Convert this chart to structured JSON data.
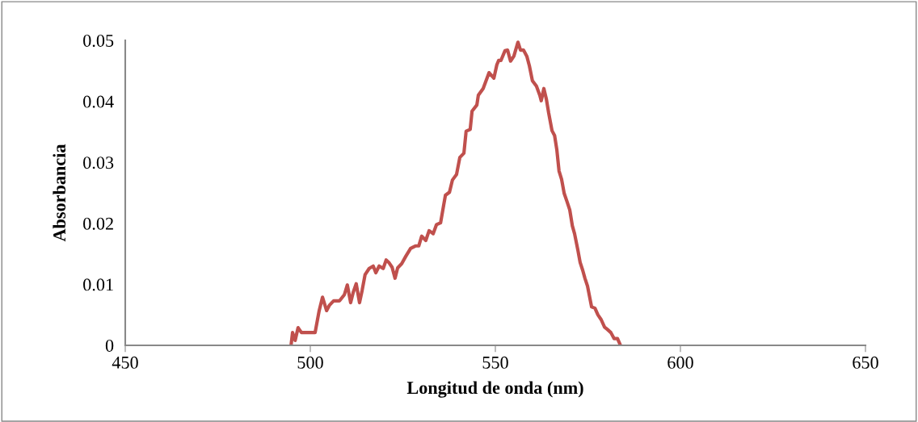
{
  "chart_data": {
    "type": "line",
    "xlabel": "Longitud de onda (nm)",
    "ylabel": "Absorbancia",
    "xlim": [
      450,
      650
    ],
    "xticks": [
      450,
      500,
      550,
      600,
      650
    ],
    "ylim": [
      0,
      0.05
    ],
    "yticks": [
      0,
      0.01,
      0.02,
      0.03,
      0.04,
      0.05
    ],
    "grid": false,
    "legend": false,
    "marker": "none",
    "line_style": "solid",
    "series": [
      {
        "color": "#c0504d",
        "x": [
          494.8,
          495.2,
          495.9,
          496.7,
          497.6,
          499.1,
          501.3,
          502.4,
          503.3,
          504.4,
          505.2,
          506.3,
          507.9,
          509.2,
          510.0,
          510.9,
          511.6,
          512.4,
          513.3,
          514.0,
          514.8,
          515.9,
          517.0,
          517.7,
          518.6,
          519.7,
          520.5,
          521.2,
          522.1,
          522.9,
          523.6,
          524.7,
          525.8,
          527.1,
          528.4,
          529.3,
          530.1,
          531.2,
          532.1,
          533.2,
          534.1,
          535.2,
          536.5,
          537.6,
          538.4,
          539.5,
          540.4,
          541.5,
          542.1,
          543.2,
          543.7,
          545.0,
          545.4,
          546.7,
          548.3,
          549.6,
          550.4,
          550.9,
          551.5,
          552.6,
          553.3,
          554.1,
          555.0,
          556.1,
          556.8,
          557.6,
          558.5,
          559.2,
          560.0,
          561.1,
          562.0,
          562.4,
          563.1,
          563.8,
          564.4,
          565.3,
          566.0,
          566.6,
          567.2,
          567.9,
          568.6,
          569.4,
          570.1,
          570.8,
          571.4,
          572.3,
          572.9,
          573.6,
          574.2,
          574.9,
          576.0,
          576.9,
          577.7,
          578.6,
          579.5,
          580.3,
          581.2,
          582.1,
          583.0,
          583.8
        ],
        "values": [
          0,
          0.0021,
          0.0008,
          0.0029,
          0.0021,
          0.0021,
          0.0021,
          0.0057,
          0.0079,
          0.0057,
          0.0066,
          0.0073,
          0.0073,
          0.0083,
          0.0099,
          0.007,
          0.0087,
          0.0101,
          0.007,
          0.009,
          0.0116,
          0.0126,
          0.013,
          0.0119,
          0.013,
          0.0126,
          0.014,
          0.0136,
          0.0128,
          0.011,
          0.0127,
          0.0134,
          0.0146,
          0.0159,
          0.0163,
          0.0163,
          0.0179,
          0.0172,
          0.0188,
          0.0183,
          0.0198,
          0.0201,
          0.0246,
          0.0251,
          0.0271,
          0.028,
          0.0308,
          0.0315,
          0.0351,
          0.0354,
          0.0384,
          0.0394,
          0.041,
          0.0421,
          0.0447,
          0.0438,
          0.046,
          0.0467,
          0.0467,
          0.0483,
          0.0484,
          0.0466,
          0.0474,
          0.0497,
          0.0484,
          0.0484,
          0.0474,
          0.0458,
          0.0434,
          0.0425,
          0.041,
          0.0401,
          0.0421,
          0.0403,
          0.0381,
          0.0352,
          0.0344,
          0.0321,
          0.0286,
          0.0272,
          0.0249,
          0.0235,
          0.0222,
          0.0196,
          0.0183,
          0.0156,
          0.0136,
          0.0123,
          0.011,
          0.0097,
          0.0063,
          0.0061,
          0.005,
          0.0042,
          0.003,
          0.0026,
          0.0021,
          0.0011,
          0.0011,
          0
        ]
      }
    ]
  }
}
